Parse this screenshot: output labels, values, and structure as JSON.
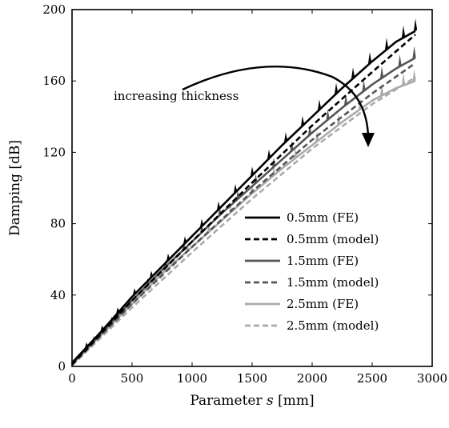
{
  "chart_data": {
    "type": "line",
    "xlabel_parts": [
      "Parameter ",
      "s",
      " [mm]"
    ],
    "ylabel": "Damping [dB]",
    "xlim": [
      0,
      3000
    ],
    "ylim": [
      0,
      200
    ],
    "xticks": [
      0,
      500,
      1000,
      1500,
      2000,
      2500,
      3000
    ],
    "yticks": [
      0,
      40,
      80,
      120,
      160,
      200
    ],
    "grid": false,
    "legend_position": "bottom-right",
    "annotation": {
      "text": "increasing thickness"
    },
    "series": [
      {
        "name": "0.5mm (FE)",
        "color": "#000000",
        "dash": "solid",
        "x": [
          0,
          250,
          500,
          750,
          1000,
          1250,
          1500,
          1750,
          2000,
          2250,
          2500,
          2700,
          2860
        ],
        "y": [
          2,
          20,
          39,
          56,
          73,
          90,
          107,
          124,
          140,
          156,
          171,
          182,
          188
        ],
        "spikes": [
          120,
          250,
          380,
          520,
          660,
          800,
          940,
          1080,
          1220,
          1360,
          1500,
          1640,
          1780,
          1920,
          2060,
          2200,
          2340,
          2480,
          2620,
          2760,
          2860
        ]
      },
      {
        "name": "0.5mm (model)",
        "color": "#000000",
        "dash": "dashed",
        "x": [
          0,
          500,
          1000,
          1500,
          2000,
          2500,
          2860
        ],
        "y": [
          1,
          37,
          70,
          103,
          135,
          165,
          186
        ]
      },
      {
        "name": "1.5mm (FE)",
        "color": "#555555",
        "dash": "solid",
        "x": [
          0,
          250,
          500,
          750,
          1000,
          1250,
          1500,
          1750,
          2000,
          2250,
          2500,
          2700,
          2860
        ],
        "y": [
          1.5,
          19,
          37,
          54,
          70,
          86,
          101,
          116,
          131,
          145,
          158,
          167,
          173
        ],
        "spikes": [
          180,
          330,
          480,
          630,
          780,
          930,
          1080,
          1230,
          1380,
          1530,
          1680,
          1830,
          1980,
          2130,
          2280,
          2430,
          2580,
          2730,
          2850
        ]
      },
      {
        "name": "1.5mm (model)",
        "color": "#555555",
        "dash": "dashed",
        "x": [
          0,
          500,
          1000,
          1500,
          2000,
          2500,
          2860
        ],
        "y": [
          1,
          35,
          67,
          98,
          127,
          153,
          170
        ]
      },
      {
        "name": "2.5mm (FE)",
        "color": "#aaaaaa",
        "dash": "solid",
        "x": [
          0,
          250,
          500,
          750,
          1000,
          1250,
          1500,
          1750,
          2000,
          2250,
          2500,
          2700,
          2860
        ],
        "y": [
          1,
          18,
          35,
          52,
          67,
          82,
          97,
          111,
          124,
          137,
          149,
          156,
          160
        ],
        "spikes": [
          240,
          420,
          600,
          780,
          960,
          1140,
          1320,
          1500,
          1680,
          1860,
          2040,
          2220,
          2400,
          2580,
          2760,
          2850
        ]
      },
      {
        "name": "2.5mm (model)",
        "color": "#aaaaaa",
        "dash": "dashed",
        "x": [
          0,
          500,
          1000,
          1500,
          2000,
          2500,
          2860
        ],
        "y": [
          0.5,
          33,
          64,
          94,
          122,
          147,
          162
        ]
      }
    ]
  }
}
